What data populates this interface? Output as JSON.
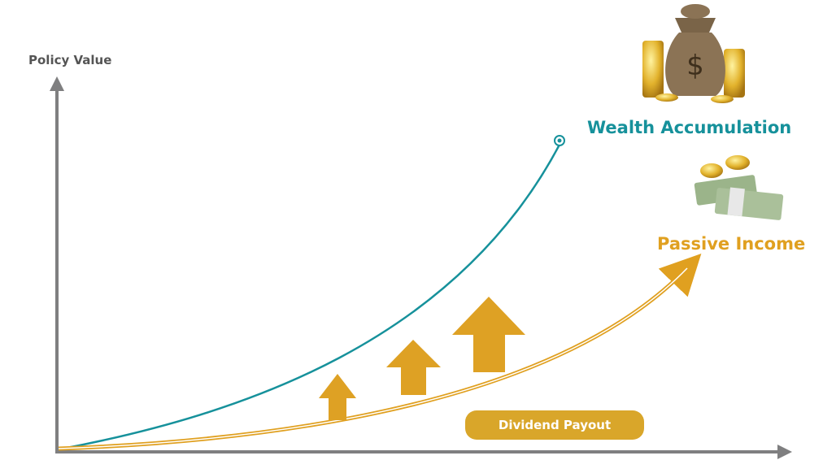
{
  "diagram": {
    "y_axis_label": "Policy Value",
    "curves": [
      {
        "label": "Wealth Accumulation"
      },
      {
        "label": "Passive Income"
      }
    ],
    "badge": "Dividend Payout"
  }
}
